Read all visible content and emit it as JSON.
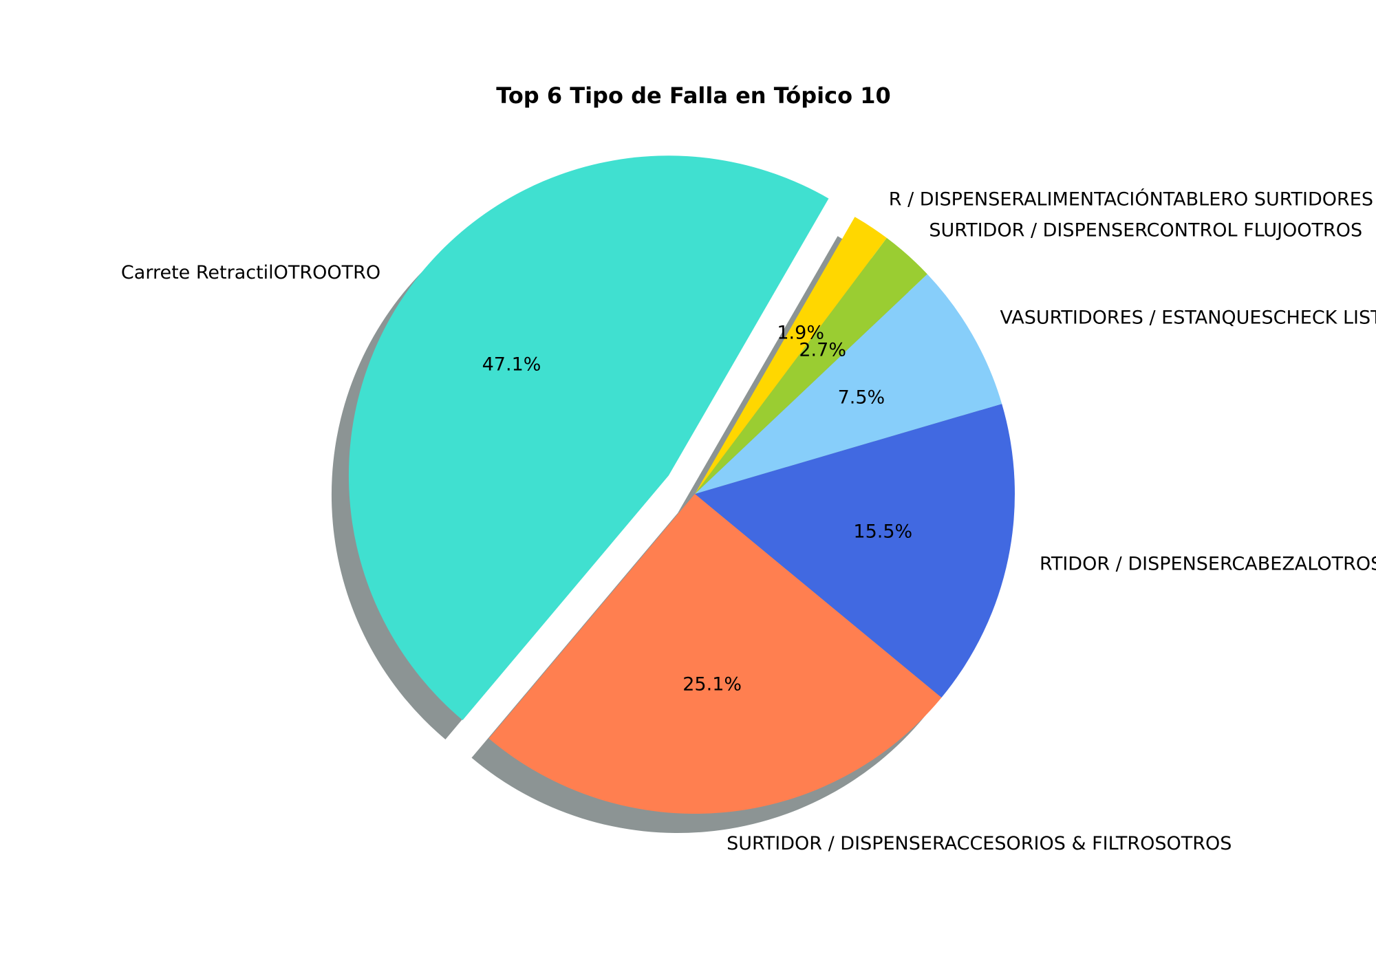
{
  "chart_data": {
    "type": "pie",
    "title": "Top 6 Tipo de Falla en Tópico 10",
    "slices": [
      {
        "label": "Carrete RetractilOTROOTRO",
        "value": 47.1,
        "pct_label": "47.1%",
        "color": "#40E0D0",
        "exploded": true
      },
      {
        "label": "SURTIDOR / DISPENSERACCESORIOS & FILTROSOTROS",
        "value": 25.1,
        "pct_label": "25.1%",
        "color": "#FF7F50",
        "exploded": false
      },
      {
        "label": "RTIDOR / DISPENSERCABEZALOTROS",
        "value": 15.5,
        "pct_label": "15.5%",
        "color": "#4169E1",
        "exploded": false
      },
      {
        "label": "VASURTIDORES / ESTANQUESCHECK LIST",
        "value": 7.5,
        "pct_label": "7.5%",
        "color": "#87CEFA",
        "exploded": false
      },
      {
        "label": "SURTIDOR / DISPENSERCONTROL FLUJOOTROS",
        "value": 2.7,
        "pct_label": "2.7%",
        "color": "#9ACD32",
        "exploded": false
      },
      {
        "label": "R / DISPENSERALIMENTACIÓNTABLERO SURTIDORES",
        "value": 1.9,
        "pct_label": "1.9%",
        "color": "#FFD700",
        "exploded": false
      }
    ],
    "start_angle_deg": 60,
    "direction": "counterclockwise",
    "shadow": true,
    "legend": "none"
  }
}
